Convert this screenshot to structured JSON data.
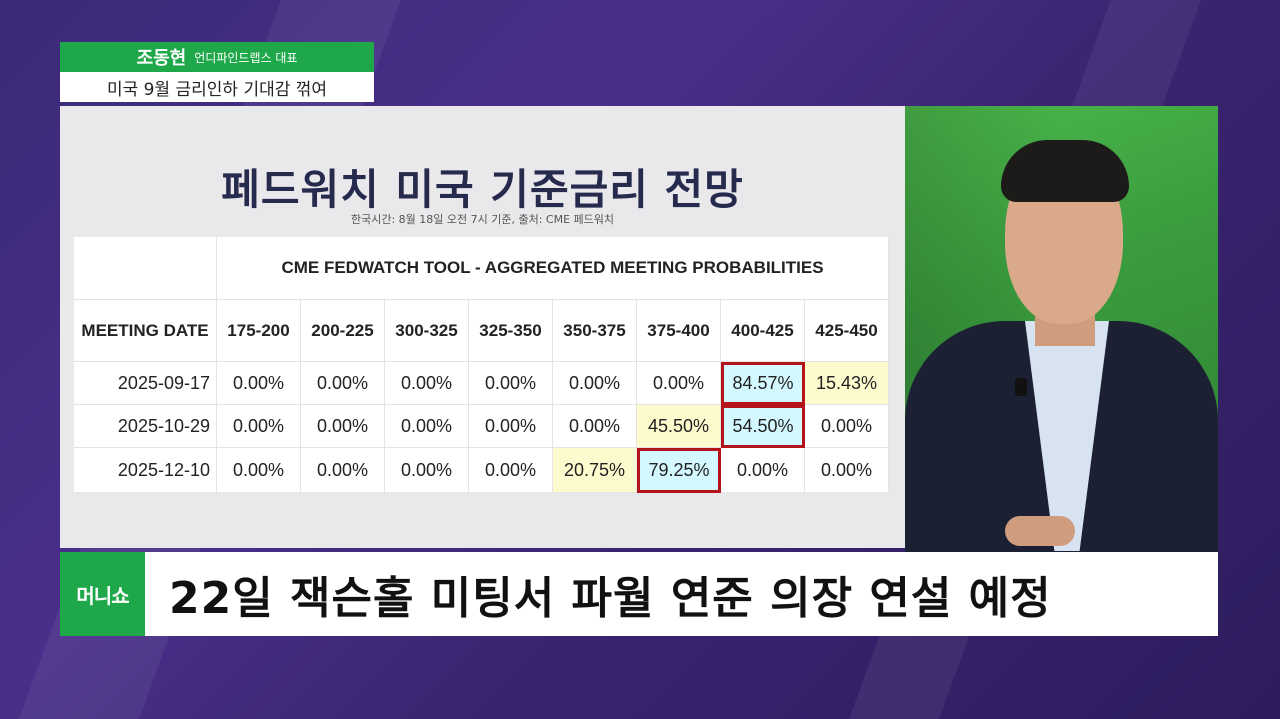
{
  "name_caption": {
    "name": "조동현",
    "title": "언디파인드랩스 대표",
    "subtitle": "미국 9월 금리인하 기대감 꺾여"
  },
  "slide": {
    "title": "페드워치 미국 기준금리 전망",
    "subtitle": "한국시간: 8월 18일 오전 7시 기준, 출처: CME 페드워치",
    "table_title": "CME FEDWATCH TOOL - AGGREGATED MEETING PROBABILITIES",
    "columns": [
      "MEETING DATE",
      "175-200",
      "200-225",
      "300-325",
      "325-350",
      "350-375",
      "375-400",
      "400-425",
      "425-450"
    ],
    "rows": [
      {
        "date": "2025-09-17",
        "values": [
          "0.00%",
          "0.00%",
          "0.00%",
          "0.00%",
          "0.00%",
          "0.00%",
          "84.57%",
          "15.43%"
        ]
      },
      {
        "date": "2025-10-29",
        "values": [
          "0.00%",
          "0.00%",
          "0.00%",
          "0.00%",
          "0.00%",
          "45.50%",
          "54.50%",
          "0.00%"
        ]
      },
      {
        "date": "2025-12-10",
        "values": [
          "0.00%",
          "0.00%",
          "0.00%",
          "0.00%",
          "20.75%",
          "79.25%",
          "0.00%",
          "0.00%"
        ]
      }
    ],
    "highlight_colors": {
      "yellow": "#fdfacd",
      "cyan": "#d4f8ff",
      "box": "#b3141b"
    }
  },
  "bottom_bar": {
    "logo": "머니쇼",
    "headline": "22일 잭슨홀 미팅서 파월 연준 의장 연설 예정",
    "brand_color": "#1fa84a"
  }
}
